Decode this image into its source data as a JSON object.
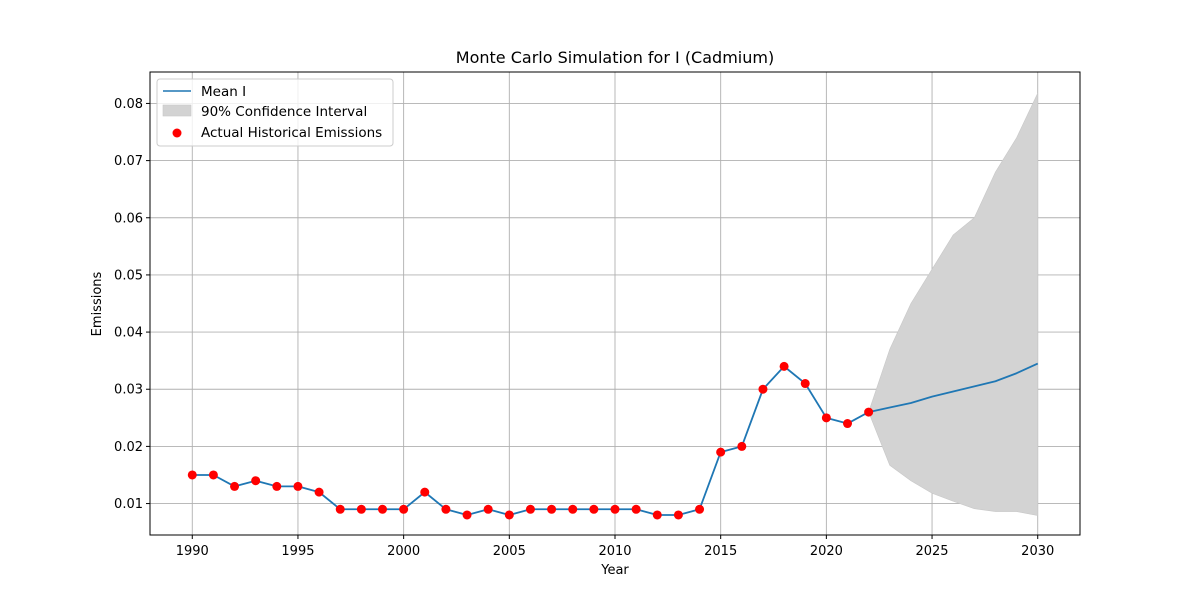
{
  "chart_data": {
    "type": "line",
    "title": "Monte Carlo Simulation for I (Cadmium)",
    "xlabel": "Year",
    "ylabel": "Emissions",
    "xlim": [
      1988,
      2032
    ],
    "ylim": [
      0.0045,
      0.0855
    ],
    "xticks": [
      1990,
      1995,
      2000,
      2005,
      2010,
      2015,
      2020,
      2025,
      2030
    ],
    "yticks": [
      0.01,
      0.02,
      0.03,
      0.04,
      0.05,
      0.06,
      0.07,
      0.08
    ],
    "ytick_labels": [
      "0.01",
      "0.02",
      "0.03",
      "0.04",
      "0.05",
      "0.06",
      "0.07",
      "0.08"
    ],
    "grid": true,
    "legend_position": "top-left",
    "colors": {
      "mean": "#1f77b4",
      "ci": "#d3d3d3",
      "actual": "#ff0000"
    },
    "series": [
      {
        "name": "Mean I",
        "kind": "line",
        "x": [
          1990,
          1991,
          1992,
          1993,
          1994,
          1995,
          1996,
          1997,
          1998,
          1999,
          2000,
          2001,
          2002,
          2003,
          2004,
          2005,
          2006,
          2007,
          2008,
          2009,
          2010,
          2011,
          2012,
          2013,
          2014,
          2015,
          2016,
          2017,
          2018,
          2019,
          2020,
          2021,
          2022,
          2023,
          2024,
          2025,
          2026,
          2027,
          2028,
          2029,
          2030
        ],
        "y": [
          0.015,
          0.015,
          0.013,
          0.014,
          0.013,
          0.013,
          0.012,
          0.009,
          0.009,
          0.009,
          0.009,
          0.012,
          0.009,
          0.008,
          0.009,
          0.008,
          0.009,
          0.009,
          0.009,
          0.009,
          0.009,
          0.009,
          0.008,
          0.008,
          0.009,
          0.019,
          0.02,
          0.03,
          0.034,
          0.031,
          0.025,
          0.024,
          0.026,
          0.0268,
          0.0276,
          0.0287,
          0.0296,
          0.0305,
          0.0314,
          0.0328,
          0.0345
        ]
      },
      {
        "name": "90% Confidence Interval",
        "kind": "band",
        "x": [
          2022,
          2023,
          2024,
          2025,
          2026,
          2027,
          2028,
          2029,
          2030
        ],
        "lower": [
          0.026,
          0.0167,
          0.014,
          0.0118,
          0.0104,
          0.0091,
          0.0086,
          0.0086,
          0.0079
        ],
        "upper": [
          0.026,
          0.037,
          0.045,
          0.051,
          0.057,
          0.06,
          0.068,
          0.074,
          0.0818
        ]
      },
      {
        "name": "Actual Historical Emissions",
        "kind": "scatter",
        "x": [
          1990,
          1991,
          1992,
          1993,
          1994,
          1995,
          1996,
          1997,
          1998,
          1999,
          2000,
          2001,
          2002,
          2003,
          2004,
          2005,
          2006,
          2007,
          2008,
          2009,
          2010,
          2011,
          2012,
          2013,
          2014,
          2015,
          2016,
          2017,
          2018,
          2019,
          2020,
          2021,
          2022
        ],
        "y": [
          0.015,
          0.015,
          0.013,
          0.014,
          0.013,
          0.013,
          0.012,
          0.009,
          0.009,
          0.009,
          0.009,
          0.012,
          0.009,
          0.008,
          0.009,
          0.008,
          0.009,
          0.009,
          0.009,
          0.009,
          0.009,
          0.009,
          0.008,
          0.008,
          0.009,
          0.019,
          0.02,
          0.03,
          0.034,
          0.031,
          0.025,
          0.024,
          0.026
        ]
      }
    ]
  }
}
